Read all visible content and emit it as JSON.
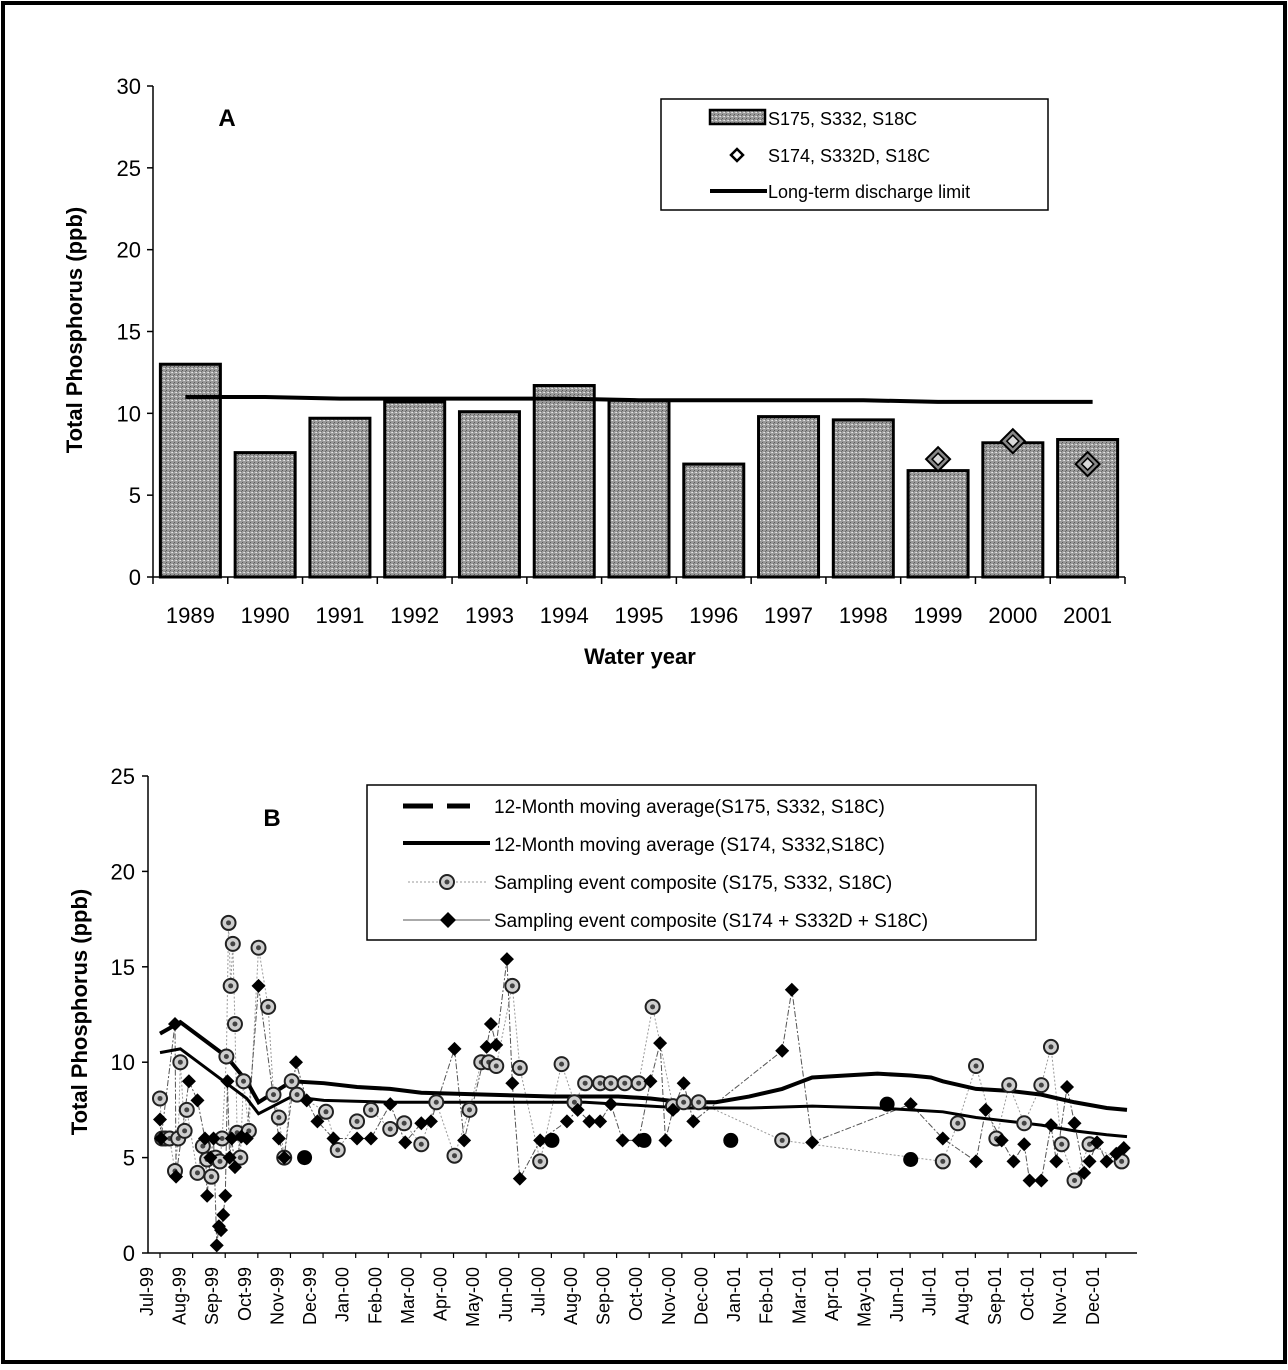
{
  "chart_data": [
    {
      "type": "bar",
      "panel_label": "A",
      "ylabel": "Total Phosphorus (ppb)",
      "xlabel": "Water year",
      "ylim": [
        0,
        30
      ],
      "yticks": [
        0,
        5,
        10,
        15,
        20,
        25,
        30
      ],
      "categories": [
        "1989",
        "1990",
        "1991",
        "1992",
        "1993",
        "1994",
        "1995",
        "1996",
        "1997",
        "1998",
        "1999",
        "2000",
        "2001"
      ],
      "legend_position": "top-right",
      "legend": [
        {
          "key": "bar",
          "label": "S175, S332, S18C"
        },
        {
          "key": "diamond",
          "label": "S174, S332D, S18C"
        },
        {
          "key": "limit",
          "label": "Long-term discharge limit"
        }
      ],
      "series": [
        {
          "name": "S175, S332, S18C",
          "kind": "bar",
          "values": [
            13.0,
            7.6,
            9.7,
            10.7,
            10.1,
            11.7,
            10.8,
            6.9,
            9.8,
            9.6,
            6.5,
            8.2,
            8.4
          ]
        },
        {
          "name": "S174, S332D, S18C",
          "kind": "point",
          "values": [
            null,
            null,
            null,
            null,
            null,
            null,
            null,
            null,
            null,
            null,
            7.2,
            8.3,
            6.9
          ]
        },
        {
          "name": "Long-term discharge limit",
          "kind": "line",
          "values": [
            11.0,
            11.0,
            10.9,
            10.9,
            10.9,
            10.9,
            10.8,
            10.8,
            10.8,
            10.8,
            10.7,
            10.7,
            10.7
          ]
        }
      ],
      "colors": {
        "bar_fill": "#a9a9a9",
        "bar_stroke": "#000000",
        "line": "#000000"
      }
    },
    {
      "type": "line",
      "panel_label": "B",
      "ylabel": "Total Phosphorus (ppb)",
      "ylim": [
        0,
        25
      ],
      "yticks": [
        0,
        5,
        10,
        15,
        20,
        25
      ],
      "xlim": [
        "1999-07-01",
        "2001-12-20"
      ],
      "xtick_labels": [
        "Jul-99",
        "Aug-99",
        "Sep-99",
        "Oct-99",
        "Nov-99",
        "Dec-99",
        "Jan-00",
        "Feb-00",
        "Mar-00",
        "Apr-00",
        "May-00",
        "Jun-00",
        "Jul-00",
        "Aug-00",
        "Sep-00",
        "Oct-00",
        "Nov-00",
        "Dec-00",
        "Jan-01",
        "Feb-01",
        "Mar-01",
        "Apr-01",
        "May-01",
        "Jun-01",
        "Jul-01",
        "Aug-01",
        "Sep-01",
        "Oct-01",
        "Nov-01",
        "Dec-01"
      ],
      "legend_position": "top",
      "legend": [
        {
          "key": "ma-dash",
          "label": "12-Month moving average(S175, S332, S18C)"
        },
        {
          "key": "ma-solid",
          "label": "12-Month moving average (S174, S332,S18C)"
        },
        {
          "key": "circle",
          "label": "Sampling event composite (S175, S332, S18C)"
        },
        {
          "key": "diamond",
          "label": "Sampling event composite (S174 + S332D + S18C)"
        }
      ],
      "series": [
        {
          "name": "12-Month moving average (S174, S332,S18C)",
          "kind": "line-thick",
          "x": [
            "1999-07-01",
            "1999-07-20",
            "1999-09-01",
            "1999-09-20",
            "1999-10-01",
            "1999-11-01",
            "1999-12-01",
            "2000-01-01",
            "2000-02-01",
            "2000-03-01",
            "2000-05-01",
            "2000-07-01",
            "2000-09-01",
            "2000-10-01",
            "2000-11-01",
            "2000-12-01",
            "2001-01-01",
            "2001-02-01",
            "2001-02-15",
            "2001-03-01",
            "2001-04-01",
            "2001-05-01",
            "2001-06-01",
            "2001-06-20",
            "2001-07-01",
            "2001-08-01",
            "2001-09-01",
            "2001-10-01",
            "2001-11-01",
            "2001-12-01",
            "2001-12-20"
          ],
          "y": [
            11.5,
            12.1,
            10.3,
            9.0,
            7.9,
            9.0,
            8.9,
            8.7,
            8.6,
            8.4,
            8.3,
            8.2,
            8.2,
            8.1,
            7.9,
            7.9,
            8.2,
            8.6,
            8.9,
            9.2,
            9.3,
            9.4,
            9.3,
            9.2,
            9.0,
            8.6,
            8.5,
            8.3,
            7.9,
            7.6,
            7.5
          ]
        },
        {
          "name": "12-Month moving average(S175, S332, S18C)",
          "kind": "line-thin",
          "x": [
            "1999-07-01",
            "1999-07-20",
            "1999-09-01",
            "1999-09-20",
            "1999-10-01",
            "1999-11-01",
            "1999-12-01",
            "2000-02-01",
            "2000-05-01",
            "2000-08-01",
            "2000-10-01",
            "2000-11-01",
            "2001-01-01",
            "2001-03-01",
            "2001-05-01",
            "2001-06-01",
            "2001-07-01",
            "2001-08-01",
            "2001-09-01",
            "2001-10-01",
            "2001-11-01",
            "2001-12-01",
            "2001-12-20"
          ],
          "y": [
            10.5,
            10.7,
            8.9,
            8.1,
            7.3,
            8.2,
            8.0,
            7.9,
            7.9,
            7.9,
            7.7,
            7.6,
            7.6,
            7.7,
            7.6,
            7.5,
            7.4,
            7.1,
            6.9,
            6.7,
            6.4,
            6.2,
            6.1
          ]
        },
        {
          "name": "Sampling event composite (S175, S332, S18C)",
          "kind": "circle",
          "x": [
            "1999-07-01",
            "1999-07-03",
            "1999-07-06",
            "1999-07-10",
            "1999-07-15",
            "1999-07-18",
            "1999-07-20",
            "1999-07-24",
            "1999-07-26",
            "1999-08-05",
            "1999-08-10",
            "1999-08-14",
            "1999-08-18",
            "1999-08-22",
            "1999-08-26",
            "1999-08-28",
            "1999-09-01",
            "1999-09-03",
            "1999-09-05",
            "1999-09-07",
            "1999-09-09",
            "1999-09-11",
            "1999-09-14",
            "1999-09-17",
            "1999-09-22",
            "1999-10-01",
            "1999-10-10",
            "1999-10-15",
            "1999-10-20",
            "1999-10-25",
            "1999-11-01",
            "1999-11-06",
            "1999-12-03",
            "1999-12-14",
            "2000-01-01",
            "2000-01-14",
            "2000-02-01",
            "2000-02-14",
            "2000-03-01",
            "2000-03-15",
            "2000-04-01",
            "2000-04-15",
            "2000-04-26",
            "2000-05-03",
            "2000-05-10",
            "2000-05-25",
            "2000-06-01",
            "2000-06-20",
            "2000-07-10",
            "2000-07-22",
            "2000-08-01",
            "2000-08-15",
            "2000-08-25",
            "2000-09-07",
            "2000-09-20",
            "2000-10-03",
            "2000-10-22",
            "2000-11-01",
            "2000-11-15",
            "2001-02-01",
            "2001-07-01",
            "2001-07-15",
            "2001-08-01",
            "2001-08-20",
            "2001-09-01",
            "2001-09-15",
            "2001-10-01",
            "2001-10-10",
            "2001-10-20",
            "2001-11-01",
            "2001-11-15",
            "2001-12-15"
          ],
          "y": [
            8.1,
            6.0,
            6.0,
            6.0,
            4.3,
            6.0,
            10.0,
            6.4,
            7.5,
            4.2,
            5.6,
            4.9,
            4.0,
            5.0,
            4.8,
            6.0,
            10.3,
            17.3,
            14.0,
            16.2,
            12.0,
            6.3,
            5.0,
            9.0,
            6.4,
            16.0,
            12.9,
            8.3,
            7.1,
            5.0,
            9.0,
            8.3,
            7.4,
            5.4,
            6.9,
            7.5,
            6.5,
            6.8,
            5.7,
            7.9,
            5.1,
            7.5,
            10.0,
            10.0,
            9.8,
            14.0,
            9.7,
            4.8,
            9.9,
            7.9,
            8.9,
            8.9,
            8.9,
            8.9,
            8.9,
            12.9,
            7.7,
            7.9,
            7.9,
            5.9,
            4.8,
            6.8,
            9.8,
            6.0,
            8.8,
            6.8,
            8.8,
            10.8,
            5.7,
            3.8,
            5.7,
            4.8
          ]
        },
        {
          "name": "Sampling event composite (S174 + S332D + S18C)",
          "kind": "diamond",
          "x": [
            "1999-07-01",
            "1999-07-02",
            "1999-07-15",
            "1999-07-16",
            "1999-07-28",
            "1999-08-05",
            "1999-08-12",
            "1999-08-14",
            "1999-08-17",
            "1999-08-20",
            "1999-08-23",
            "1999-08-25",
            "1999-08-27",
            "1999-08-29",
            "1999-08-31",
            "1999-09-02",
            "1999-09-04",
            "1999-09-06",
            "1999-09-09",
            "1999-09-15",
            "1999-09-20",
            "1999-10-01",
            "1999-10-20",
            "1999-10-25",
            "1999-11-05",
            "1999-11-15",
            "1999-11-25",
            "1999-12-10",
            "2000-01-01",
            "2000-01-14",
            "2000-02-01",
            "2000-02-15",
            "2000-03-01",
            "2000-03-10",
            "2000-04-01",
            "2000-04-10",
            "2000-05-01",
            "2000-05-05",
            "2000-05-10",
            "2000-05-20",
            "2000-05-25",
            "2000-06-01",
            "2000-06-20",
            "2000-07-15",
            "2000-07-25",
            "2000-08-05",
            "2000-08-15",
            "2000-08-25",
            "2000-09-05",
            "2000-09-20",
            "2000-10-01",
            "2000-10-10",
            "2000-10-15",
            "2000-10-22",
            "2000-11-01",
            "2000-11-10",
            "2001-02-01",
            "2001-02-10",
            "2001-03-01",
            "2001-06-01",
            "2001-07-01",
            "2001-08-01",
            "2001-08-10",
            "2001-08-25",
            "2001-09-05",
            "2001-09-15",
            "2001-09-20",
            "2001-10-01",
            "2001-10-10",
            "2001-10-15",
            "2001-10-25",
            "2001-11-01",
            "2001-11-10",
            "2001-11-15",
            "2001-11-22",
            "2001-12-01",
            "2001-12-10",
            "2001-12-17"
          ],
          "y": [
            7.0,
            6.0,
            12.0,
            4.0,
            9.0,
            8.0,
            6.0,
            3.0,
            5.0,
            6.0,
            0.4,
            1.4,
            1.2,
            2.0,
            3.0,
            9.0,
            5.0,
            6.0,
            4.5,
            6.1,
            6.0,
            14.0,
            6.0,
            5.0,
            10.0,
            8.0,
            6.9,
            6.0,
            6.0,
            6.0,
            7.8,
            5.8,
            6.8,
            6.9,
            10.7,
            5.9,
            10.8,
            12.0,
            10.9,
            15.4,
            8.9,
            3.9,
            5.9,
            6.9,
            7.5,
            6.9,
            6.9,
            7.8,
            5.9,
            5.9,
            9.0,
            11.0,
            5.9,
            7.5,
            8.9,
            6.9,
            10.6,
            13.8,
            5.8,
            7.8,
            6.0,
            4.8,
            7.5,
            5.9,
            4.8,
            5.7,
            3.8,
            3.8,
            6.7,
            4.8,
            8.7,
            6.8,
            4.2,
            4.8,
            5.8,
            4.8,
            5.2,
            5.5
          ]
        },
        {
          "name": "Sampling event composite (solid circles)",
          "kind": "solid-circle",
          "x": [
            "1999-11-13",
            "2000-07-01",
            "2000-09-25",
            "2000-12-15",
            "2001-05-10",
            "2001-06-01"
          ],
          "y": [
            5.0,
            5.9,
            5.9,
            5.9,
            7.8,
            4.9
          ]
        }
      ],
      "colors": {
        "line": "#000000",
        "circle_fill": "#c8c8c8",
        "diamond_fill": "#000000",
        "connector": "#555555"
      }
    }
  ]
}
